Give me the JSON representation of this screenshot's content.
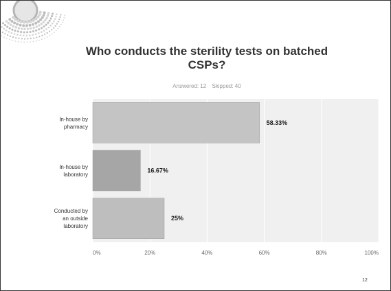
{
  "slide": {
    "page_number": "12"
  },
  "survey": {
    "answered": "Answered: 12",
    "skipped": "Skipped: 40"
  },
  "chart_data": {
    "type": "bar",
    "orientation": "horizontal",
    "title": "Who conducts the sterility tests on batched CSPs?",
    "categories": [
      [
        "In-house by",
        "pharmacy"
      ],
      [
        "In-house by",
        "laboratory"
      ],
      [
        "Conducted by",
        "an outside",
        "laboratory"
      ]
    ],
    "values": [
      58.33,
      16.67,
      25
    ],
    "data_labels": [
      "58.33%",
      "16.67%",
      "25%"
    ],
    "bar_colors": [
      "#c4c4c4",
      "#a6a6a6",
      "#bebebe"
    ],
    "xlim": [
      0,
      100
    ],
    "xticks": [
      0,
      20,
      40,
      60,
      80,
      100
    ],
    "xtick_labels": [
      "0%",
      "20%",
      "40%",
      "60%",
      "80%",
      "100%"
    ],
    "grid": true,
    "plot_background": "#f0f0f0"
  }
}
